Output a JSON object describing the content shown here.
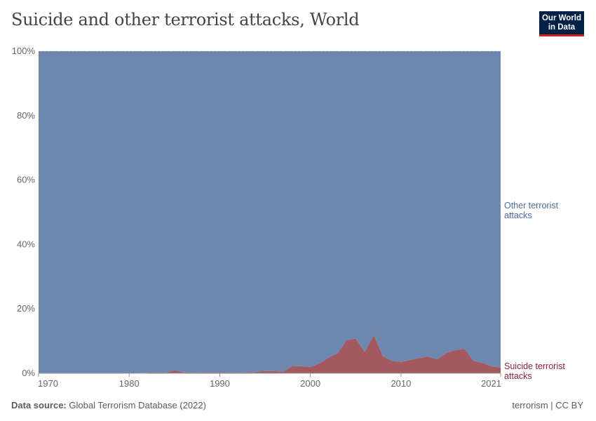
{
  "title": "Suicide and other terrorist attacks, World",
  "logo": {
    "line1": "Our World",
    "line2": "in Data"
  },
  "footer": {
    "source_label": "Data source:",
    "source": "Global Terrorism Database (2022)",
    "right": "terrorism | CC BY"
  },
  "chart_data": {
    "type": "area",
    "stacked": true,
    "relative": true,
    "x": [
      1970,
      1971,
      1972,
      1973,
      1974,
      1975,
      1976,
      1977,
      1978,
      1979,
      1980,
      1981,
      1982,
      1983,
      1984,
      1985,
      1986,
      1987,
      1988,
      1989,
      1990,
      1991,
      1992,
      1994,
      1995,
      1996,
      1997,
      1998,
      1999,
      2000,
      2001,
      2002,
      2003,
      2004,
      2005,
      2006,
      2007,
      2008,
      2009,
      2010,
      2011,
      2012,
      2013,
      2014,
      2015,
      2016,
      2017,
      2018,
      2019,
      2020,
      2021
    ],
    "series": [
      {
        "name": "Suicide terrorist attacks",
        "color": "#a2595f",
        "values": [
          0,
          0,
          0,
          0,
          0,
          0,
          0,
          0,
          0,
          0,
          0,
          0.1,
          0.2,
          0.3,
          0.2,
          0.9,
          0.3,
          0.2,
          0.3,
          0.3,
          0.3,
          0.3,
          0.2,
          0.4,
          0.7,
          0.7,
          0.4,
          2.3,
          2.2,
          2.0,
          3.0,
          4.9,
          6.2,
          10.3,
          10.8,
          6.6,
          11.9,
          5.3,
          3.9,
          3.5,
          4.1,
          4.7,
          5.2,
          4.3,
          6.3,
          7.2,
          7.6,
          3.9,
          3.2,
          2.1,
          1.8
        ]
      },
      {
        "name": "Other terrorist attacks",
        "color": "#6d87b0",
        "values": [
          100,
          100,
          100,
          100,
          100,
          100,
          100,
          100,
          100,
          100,
          100,
          99.9,
          99.8,
          99.7,
          99.8,
          99.1,
          99.7,
          99.8,
          99.7,
          99.7,
          99.7,
          99.7,
          99.8,
          99.6,
          99.3,
          99.3,
          99.6,
          97.7,
          97.8,
          98.0,
          97.0,
          95.1,
          93.8,
          89.7,
          89.2,
          93.4,
          88.1,
          94.7,
          96.1,
          96.5,
          95.9,
          95.3,
          94.8,
          95.7,
          93.7,
          92.8,
          92.4,
          96.1,
          96.8,
          97.9,
          98.2
        ]
      }
    ],
    "label_colors": {
      "Suicide terrorist attacks": "#8c2131",
      "Other terrorist attacks": "#4c6a9c"
    },
    "x_ticks": [
      "1970",
      "1980",
      "1990",
      "2000",
      "2010",
      "2021"
    ],
    "y_ticks": [
      "0%",
      "20%",
      "40%",
      "60%",
      "80%",
      "100%"
    ],
    "ylim": [
      0,
      100
    ],
    "xlim": [
      1970,
      2021
    ],
    "grid": "horizontal dashed",
    "legend": "right, inline labels",
    "other_label_lines": [
      "Other terrorist",
      "attacks"
    ],
    "suicide_label_lines": [
      "Suicide terrorist",
      "attacks"
    ]
  }
}
